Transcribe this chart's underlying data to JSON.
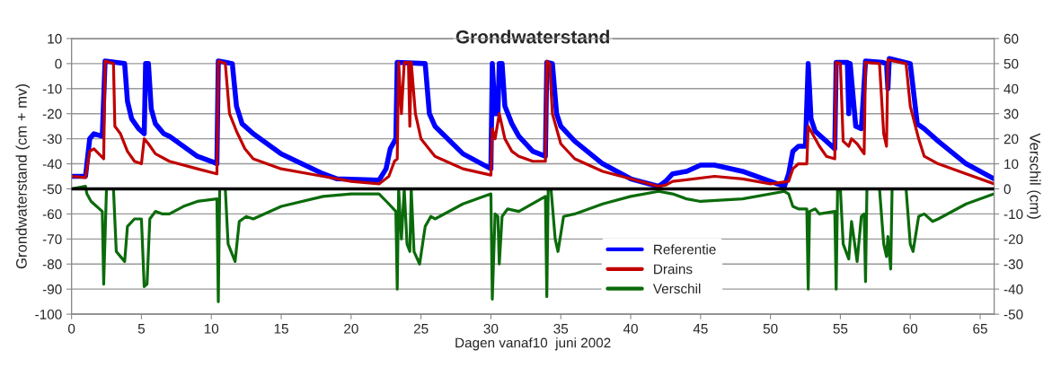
{
  "chart_data": {
    "type": "line",
    "title": "Grondwaterstand",
    "xlabel": "Dagen vanaf10  juni 2002",
    "ylabel": "Grondwaterstand (cm + mv)",
    "y2label": "Verschil (cm)",
    "xlim": [
      0,
      66
    ],
    "xticks": [
      0,
      5,
      10,
      15,
      20,
      25,
      30,
      35,
      40,
      45,
      50,
      55,
      60,
      65
    ],
    "ylim": [
      -100,
      10
    ],
    "yticks": [
      -100,
      -90,
      -80,
      -70,
      -60,
      -50,
      -40,
      -30,
      -20,
      -10,
      0,
      10
    ],
    "y2lim": [
      -50,
      60
    ],
    "y2ticks": [
      -50,
      -40,
      -30,
      -20,
      -10,
      0,
      10,
      20,
      30,
      40,
      50,
      60
    ],
    "grid": "y",
    "legend": "bottom",
    "line_style": "solid",
    "marker": "none",
    "ref_lines": [
      {
        "axis": "y2",
        "value": 0,
        "color": "#000000"
      }
    ],
    "series": [
      {
        "name": "Referentie",
        "color": "#0000ff",
        "x": [
          0,
          1.0,
          1.3,
          1.6,
          2.2,
          2.4,
          3.8,
          4.0,
          4.3,
          4.8,
          5.2,
          5.3,
          5.5,
          5.7,
          6.0,
          6.6,
          7.0,
          8,
          9,
          10,
          10.4,
          10.5,
          11.5,
          11.8,
          12.2,
          13,
          15,
          18,
          19,
          22,
          22.5,
          22.8,
          23.2,
          23.3,
          25.3,
          25.6,
          26,
          28,
          30,
          30.1,
          30.3,
          30.5,
          30.6,
          30.8,
          31,
          31.5,
          32,
          33,
          33.9,
          34.0,
          34.4,
          34.7,
          35,
          36,
          38,
          40,
          42,
          42.5,
          43,
          44,
          45,
          46,
          48,
          50,
          51,
          51.3,
          51.6,
          52,
          52.5,
          52.7,
          52.9,
          53.2,
          54.6,
          54.7,
          55.5,
          55.6,
          55.7,
          56.1,
          56.5,
          56.8,
          58,
          58.3,
          58.4,
          58.5,
          60,
          60.5,
          61,
          62,
          64,
          66
        ],
        "values": [
          -45,
          -45,
          -30,
          -28,
          -29,
          1,
          0,
          -15,
          -22,
          -26,
          -28,
          0,
          0,
          -18,
          -24,
          -28,
          -29,
          -33,
          -37,
          -39,
          -40,
          1,
          0,
          -17,
          -24,
          -28,
          -36,
          -44,
          -46,
          -46.5,
          -42,
          -34,
          -30,
          0.5,
          0,
          -20,
          -25,
          -36,
          -42,
          0,
          -20,
          -20,
          0,
          0,
          -17,
          -24,
          -29,
          -35,
          -37,
          0.5,
          0,
          -20,
          -25,
          -31,
          -40,
          -46,
          -49,
          -47,
          -44,
          -43,
          -40.5,
          -40.5,
          -43,
          -47,
          -49,
          -44,
          -35,
          -33,
          -33,
          0,
          -22,
          -27,
          -34,
          0.5,
          0.5,
          -20,
          0,
          -25,
          -26,
          1,
          0.5,
          0,
          -10,
          2,
          0,
          -24,
          -26,
          -31,
          -40,
          -46
        ]
      },
      {
        "name": "Drains",
        "color": "#c00000",
        "x": [
          0,
          1.0,
          1.3,
          1.6,
          2.3,
          2.4,
          3.0,
          3.1,
          3.5,
          4,
          4.5,
          5.0,
          5.2,
          5.5,
          6,
          7,
          9,
          10.4,
          10.5,
          11.0,
          11.3,
          11.8,
          12.4,
          13,
          15,
          18,
          20,
          22,
          22.7,
          23.1,
          23.3,
          23.4,
          23.6,
          23.8,
          24.1,
          24.2,
          24.3,
          24.6,
          25,
          26,
          28,
          30,
          30.1,
          30.3,
          30.6,
          31,
          31.5,
          32,
          33,
          33.9,
          34.0,
          34.2,
          34.4,
          35,
          36,
          38,
          40,
          42,
          42.5,
          43,
          46,
          48,
          50,
          51.3,
          51.6,
          52,
          52.6,
          52.7,
          53,
          53.5,
          54,
          54.6,
          54.7,
          55,
          55.2,
          55.6,
          55.8,
          56.2,
          56.7,
          56.8,
          57.8,
          58.1,
          58.3,
          58.4,
          59.7,
          60,
          60.6,
          61,
          62,
          64,
          66
        ],
        "values": [
          -45,
          -45.5,
          -35,
          -34,
          -38,
          1,
          0,
          -25,
          -28,
          -35,
          -39,
          -40,
          -30,
          -32,
          -36,
          -39,
          -42,
          -44,
          1,
          0,
          -20,
          -27,
          -34,
          -38,
          -42,
          -45,
          -47,
          -48,
          -45,
          -39,
          -38,
          0.5,
          -20,
          0.5,
          0.5,
          -25,
          0.5,
          -20,
          -30,
          -37,
          -42,
          -44.5,
          -26,
          -30,
          -20,
          -30,
          -35,
          -37,
          -39,
          -39,
          1,
          0,
          -20,
          -32,
          -38,
          -43,
          -46,
          -49,
          -48.5,
          -47,
          -45,
          -46,
          -48,
          -47,
          -42,
          -40,
          -40,
          -25,
          -28,
          -33,
          -37,
          -38,
          0.5,
          0,
          -31,
          -33,
          -30,
          -32,
          -36,
          0.5,
          0,
          -28,
          -33,
          1.5,
          0,
          -17,
          -30,
          -37,
          -40,
          -44,
          -48
        ]
      },
      {
        "name": "Verschil",
        "color": "#0b6b0b",
        "axis": "y2",
        "x": [
          0,
          1.0,
          1.1,
          1.4,
          2.2,
          2.3,
          2.5,
          3.0,
          3.2,
          3.5,
          3.8,
          4.0,
          4.5,
          5.0,
          5.2,
          5.4,
          5.6,
          6,
          6.5,
          7,
          8,
          9,
          10.4,
          10.5,
          10.6,
          11.0,
          11.2,
          11.7,
          12.0,
          12.5,
          13,
          15,
          18,
          20,
          22,
          22.7,
          23.2,
          23.3,
          23.4,
          23.6,
          23.8,
          24.0,
          24.2,
          24.3,
          24.5,
          24.9,
          25.3,
          25.7,
          26,
          28,
          30.0,
          30.1,
          30.3,
          30.5,
          30.6,
          30.8,
          31.2,
          32,
          33.9,
          34.0,
          34.1,
          34.3,
          34.6,
          34.8,
          35.2,
          36,
          38,
          40,
          42,
          43,
          44,
          45,
          48,
          51,
          51.3,
          51.6,
          52,
          52.6,
          52.7,
          52.8,
          53.2,
          53.5,
          54.6,
          54.7,
          54.8,
          55,
          55.2,
          55.6,
          55.8,
          56.2,
          56.5,
          56.7,
          56.8,
          56.9,
          57.8,
          58.1,
          58.3,
          58.4,
          58.6,
          58.7,
          59.7,
          60.0,
          60.2,
          60.6,
          61,
          61.6,
          62,
          64,
          66
        ],
        "values": [
          0,
          1,
          -2,
          -5,
          -9,
          -38,
          0,
          0,
          -25,
          -27,
          -29,
          -15,
          -12,
          -12,
          -39,
          -38,
          -12,
          -9,
          -10,
          -10,
          -7,
          -5,
          -4,
          -45,
          0,
          0,
          -22,
          -29,
          -13,
          -11,
          -12,
          -7,
          -3,
          -2,
          -2,
          -6,
          -9,
          -40,
          0,
          -20,
          0,
          -22,
          -25,
          0,
          -25,
          -30,
          -15,
          -11,
          -12,
          -6,
          -2,
          -44,
          -10,
          -11,
          -30,
          -11,
          -8,
          -9,
          -3,
          -43,
          0,
          0,
          -20,
          -25,
          -11,
          -10,
          -6,
          -3,
          -1,
          -2,
          -4,
          -5,
          -4,
          -1,
          -2,
          -7,
          -8,
          -8,
          -40,
          -9,
          -8,
          -10,
          -9,
          -40,
          0,
          0,
          -22,
          -28,
          -13,
          -29,
          -11,
          -10,
          -37,
          0,
          0,
          -22,
          -27,
          -19,
          -32,
          0,
          0,
          -22,
          -25,
          -11,
          -10,
          -13,
          -12,
          -6,
          -2
        ]
      }
    ]
  }
}
